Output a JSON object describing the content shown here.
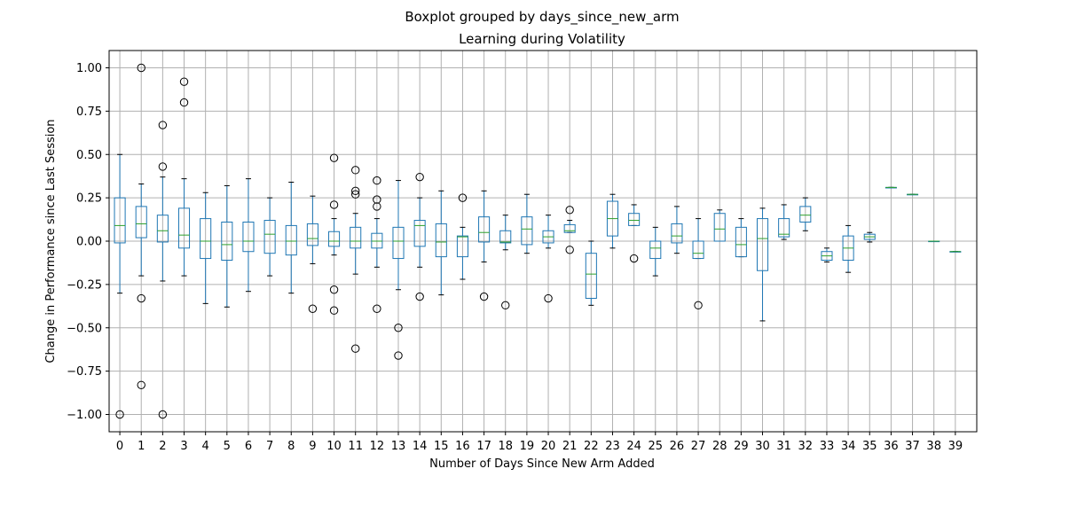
{
  "chart_data": {
    "type": "box",
    "suptitle": "Boxplot grouped by days_since_new_arm",
    "title": "Learning during Volatility",
    "xlabel": "Number of Days Since New Arm Added",
    "ylabel": "Change in Performance since Last Session",
    "ylim": [
      -1.1,
      1.1
    ],
    "yticks": [
      1.0,
      0.75,
      0.5,
      0.25,
      0.0,
      -0.25,
      -0.5,
      -0.75,
      -1.0
    ],
    "ytick_labels": [
      "1.00",
      "0.75",
      "0.50",
      "0.25",
      "0.00",
      "−0.25",
      "−0.50",
      "−0.75",
      "−1.00"
    ],
    "grid": true,
    "colors": {
      "box": "#1f77b4",
      "median": "#2ca02c",
      "grid": "#b0b0b0",
      "frame": "#000000"
    },
    "categories": [
      "0",
      "1",
      "2",
      "3",
      "4",
      "5",
      "6",
      "7",
      "8",
      "9",
      "10",
      "11",
      "12",
      "13",
      "14",
      "15",
      "16",
      "17",
      "18",
      "19",
      "20",
      "21",
      "22",
      "23",
      "24",
      "25",
      "26",
      "27",
      "28",
      "29",
      "30",
      "31",
      "32",
      "33",
      "34",
      "35",
      "36",
      "37",
      "38",
      "39"
    ],
    "boxes": [
      {
        "whislo": -0.3,
        "q1": -0.01,
        "med": 0.09,
        "q3": 0.25,
        "whishi": 0.5,
        "fliers": [
          -1.0
        ]
      },
      {
        "whislo": -0.2,
        "q1": 0.02,
        "med": 0.1,
        "q3": 0.2,
        "whishi": 0.33,
        "fliers": [
          1.0,
          -0.33,
          -0.83
        ]
      },
      {
        "whislo": -0.23,
        "q1": -0.005,
        "med": 0.06,
        "q3": 0.15,
        "whishi": 0.37,
        "fliers": [
          0.67,
          0.43,
          -1.0
        ]
      },
      {
        "whislo": -0.2,
        "q1": -0.04,
        "med": 0.035,
        "q3": 0.19,
        "whishi": 0.36,
        "fliers": [
          0.92,
          0.8
        ]
      },
      {
        "whislo": -0.36,
        "q1": -0.1,
        "med": 0.0,
        "q3": 0.13,
        "whishi": 0.28,
        "fliers": []
      },
      {
        "whislo": -0.38,
        "q1": -0.11,
        "med": -0.02,
        "q3": 0.11,
        "whishi": 0.32,
        "fliers": []
      },
      {
        "whislo": -0.29,
        "q1": -0.06,
        "med": 0.0,
        "q3": 0.11,
        "whishi": 0.36,
        "fliers": []
      },
      {
        "whislo": -0.2,
        "q1": -0.07,
        "med": 0.04,
        "q3": 0.12,
        "whishi": 0.25,
        "fliers": []
      },
      {
        "whislo": -0.3,
        "q1": -0.08,
        "med": 0.0,
        "q3": 0.09,
        "whishi": 0.34,
        "fliers": []
      },
      {
        "whislo": -0.13,
        "q1": -0.025,
        "med": 0.015,
        "q3": 0.1,
        "whishi": 0.26,
        "fliers": [
          -0.39
        ]
      },
      {
        "whislo": -0.08,
        "q1": -0.03,
        "med": 0.0,
        "q3": 0.055,
        "whishi": 0.13,
        "fliers": [
          0.48,
          0.21,
          -0.28,
          -0.4
        ]
      },
      {
        "whislo": -0.19,
        "q1": -0.04,
        "med": 0.0,
        "q3": 0.08,
        "whishi": 0.16,
        "fliers": [
          0.41,
          0.29,
          0.27,
          -0.62
        ]
      },
      {
        "whislo": -0.15,
        "q1": -0.04,
        "med": 0.0,
        "q3": 0.045,
        "whishi": 0.13,
        "fliers": [
          0.35,
          0.24,
          0.2,
          -0.39
        ]
      },
      {
        "whislo": -0.28,
        "q1": -0.1,
        "med": 0.0,
        "q3": 0.08,
        "whishi": 0.35,
        "fliers": [
          -0.5,
          -0.66
        ]
      },
      {
        "whislo": -0.15,
        "q1": -0.03,
        "med": 0.09,
        "q3": 0.12,
        "whishi": 0.25,
        "fliers": [
          0.37,
          -0.32
        ]
      },
      {
        "whislo": -0.31,
        "q1": -0.09,
        "med": -0.005,
        "q3": 0.1,
        "whishi": 0.29,
        "fliers": []
      },
      {
        "whislo": -0.22,
        "q1": -0.09,
        "med": 0.025,
        "q3": 0.03,
        "whishi": 0.08,
        "fliers": [
          0.25
        ]
      },
      {
        "whislo": -0.12,
        "q1": -0.005,
        "med": 0.05,
        "q3": 0.14,
        "whishi": 0.29,
        "fliers": [
          -0.32
        ]
      },
      {
        "whislo": -0.05,
        "q1": -0.01,
        "med": -0.005,
        "q3": 0.06,
        "whishi": 0.15,
        "fliers": [
          -0.37
        ]
      },
      {
        "whislo": -0.07,
        "q1": -0.02,
        "med": 0.07,
        "q3": 0.14,
        "whishi": 0.27,
        "fliers": []
      },
      {
        "whislo": -0.04,
        "q1": -0.01,
        "med": 0.025,
        "q3": 0.06,
        "whishi": 0.15,
        "fliers": [
          -0.33
        ]
      },
      {
        "whislo": 0.05,
        "q1": 0.05,
        "med": 0.06,
        "q3": 0.095,
        "whishi": 0.12,
        "fliers": [
          0.18,
          -0.05
        ]
      },
      {
        "whislo": -0.37,
        "q1": -0.33,
        "med": -0.19,
        "q3": -0.07,
        "whishi": 0.0,
        "fliers": []
      },
      {
        "whislo": -0.04,
        "q1": 0.03,
        "med": 0.13,
        "q3": 0.23,
        "whishi": 0.27,
        "fliers": []
      },
      {
        "whislo": 0.09,
        "q1": 0.09,
        "med": 0.12,
        "q3": 0.16,
        "whishi": 0.21,
        "fliers": [
          -0.1
        ]
      },
      {
        "whislo": -0.2,
        "q1": -0.1,
        "med": -0.04,
        "q3": 0.0,
        "whishi": 0.08,
        "fliers": []
      },
      {
        "whislo": -0.07,
        "q1": -0.01,
        "med": 0.03,
        "q3": 0.1,
        "whishi": 0.2,
        "fliers": []
      },
      {
        "whislo": -0.1,
        "q1": -0.1,
        "med": -0.07,
        "q3": 0.0,
        "whishi": 0.13,
        "fliers": [
          -0.37
        ]
      },
      {
        "whislo": 0.0,
        "q1": 0.0,
        "med": 0.07,
        "q3": 0.16,
        "whishi": 0.18,
        "fliers": []
      },
      {
        "whislo": -0.09,
        "q1": -0.09,
        "med": -0.02,
        "q3": 0.08,
        "whishi": 0.13,
        "fliers": []
      },
      {
        "whislo": -0.46,
        "q1": -0.17,
        "med": 0.015,
        "q3": 0.13,
        "whishi": 0.19,
        "fliers": []
      },
      {
        "whislo": 0.01,
        "q1": 0.025,
        "med": 0.04,
        "q3": 0.13,
        "whishi": 0.21,
        "fliers": []
      },
      {
        "whislo": 0.06,
        "q1": 0.11,
        "med": 0.15,
        "q3": 0.2,
        "whishi": 0.25,
        "fliers": []
      },
      {
        "whislo": -0.12,
        "q1": -0.11,
        "med": -0.085,
        "q3": -0.06,
        "whishi": -0.04,
        "fliers": []
      },
      {
        "whislo": -0.18,
        "q1": -0.11,
        "med": -0.04,
        "q3": 0.03,
        "whishi": 0.09,
        "fliers": []
      },
      {
        "whislo": -0.005,
        "q1": 0.01,
        "med": 0.025,
        "q3": 0.04,
        "whishi": 0.05,
        "fliers": []
      },
      {
        "whislo": 0.31,
        "q1": 0.31,
        "med": 0.31,
        "q3": 0.31,
        "whishi": 0.31,
        "fliers": []
      },
      {
        "whislo": 0.27,
        "q1": 0.27,
        "med": 0.27,
        "q3": 0.27,
        "whishi": 0.27,
        "fliers": []
      },
      {
        "whislo": 0.0,
        "q1": 0.0,
        "med": 0.0,
        "q3": 0.0,
        "whishi": 0.0,
        "fliers": []
      },
      {
        "whislo": -0.06,
        "q1": -0.06,
        "med": -0.06,
        "q3": -0.06,
        "whishi": -0.06,
        "fliers": []
      }
    ]
  }
}
